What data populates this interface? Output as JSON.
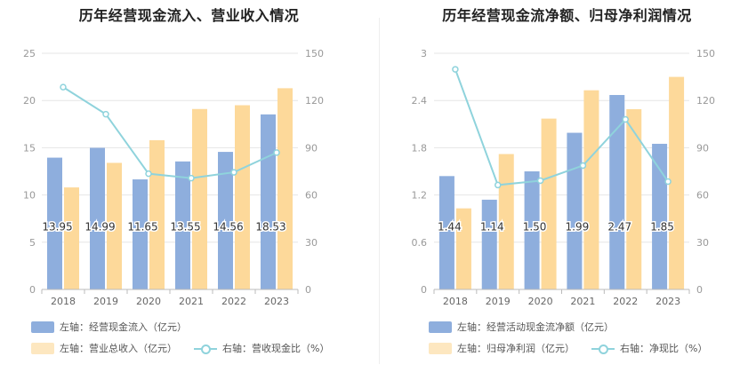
{
  "colors": {
    "blue": "#8eaedd",
    "orange": "#fdd99a",
    "teal": "#8fd3dc",
    "axis": "#999999",
    "grid": "#e6e6e6"
  },
  "chart_data": [
    {
      "type": "bar",
      "title": "历年经营现金流入、营业收入情况",
      "categories": [
        "2018",
        "2019",
        "2020",
        "2021",
        "2022",
        "2023"
      ],
      "y_left": {
        "min": 0,
        "max": 25,
        "ticks": [
          "0",
          "5",
          "10",
          "15",
          "20",
          "25"
        ]
      },
      "y_right": {
        "min": 0,
        "max": 150,
        "ticks": [
          "0",
          "30",
          "60",
          "90",
          "120",
          "150"
        ]
      },
      "series": [
        {
          "name": "左轴：经营现金流入（亿元）",
          "axis": "left",
          "kind": "bar",
          "color": "#8eaedd",
          "values": [
            13.95,
            14.99,
            11.65,
            13.55,
            14.56,
            18.53
          ],
          "labels": [
            "13.95",
            "14.99",
            "11.65",
            "13.55",
            "14.56",
            "18.53"
          ]
        },
        {
          "name": "左轴：营业总收入（亿元）",
          "axis": "left",
          "kind": "bar",
          "color": "#fdd99a",
          "values": [
            10.8,
            13.4,
            15.8,
            19.1,
            19.5,
            21.3
          ]
        },
        {
          "name": "右轴：营收现金比（%）",
          "axis": "right",
          "kind": "line",
          "color": "#8fd3dc",
          "values": [
            128.5,
            111.3,
            73.5,
            70.7,
            74.4,
            86.9
          ]
        }
      ]
    },
    {
      "type": "bar",
      "title": "历年经营现金流净额、归母净利润情况",
      "categories": [
        "2018",
        "2019",
        "2020",
        "2021",
        "2022",
        "2023"
      ],
      "y_left": {
        "min": 0,
        "max": 3,
        "ticks": [
          "0",
          "0.6",
          "1.2",
          "1.8",
          "2.4",
          "3"
        ]
      },
      "y_right": {
        "min": 0,
        "max": 150,
        "ticks": [
          "0",
          "30",
          "60",
          "90",
          "120",
          "150"
        ]
      },
      "series": [
        {
          "name": "左轴：经营活动现金流净额（亿元）",
          "axis": "left",
          "kind": "bar",
          "color": "#8eaedd",
          "values": [
            1.44,
            1.14,
            1.5,
            1.99,
            2.47,
            1.85
          ],
          "labels": [
            "1.44",
            "1.14",
            "1.50",
            "1.99",
            "2.47",
            "1.85"
          ]
        },
        {
          "name": "左轴：归母净利润（亿元）",
          "axis": "left",
          "kind": "bar",
          "color": "#fdd99a",
          "values": [
            1.03,
            1.72,
            2.17,
            2.53,
            2.29,
            2.7
          ]
        },
        {
          "name": "右轴：净现比（%）",
          "axis": "right",
          "kind": "line",
          "color": "#8fd3dc",
          "values": [
            139.8,
            66.3,
            69.1,
            78.7,
            108.0,
            68.5
          ]
        }
      ]
    }
  ]
}
